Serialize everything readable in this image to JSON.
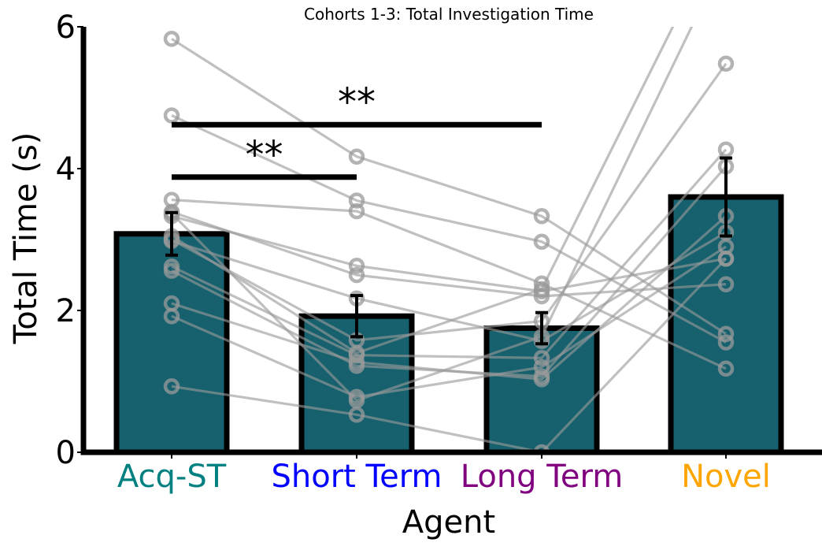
{
  "chart_data": {
    "type": "bar",
    "title": "Cohorts 1-3: Total Investigation Time",
    "xlabel": "Agent",
    "ylabel": "Total Time (s)",
    "ylim": [
      0,
      6
    ],
    "yticks": [
      0,
      2,
      4,
      6
    ],
    "categories": [
      "Acq-ST",
      "Short Term",
      "Long Term",
      "Novel"
    ],
    "category_colors": [
      "#008080",
      "#0000FF",
      "#800080",
      "#FFA500"
    ],
    "bar_color": "#17616F",
    "means": [
      3.08,
      1.92,
      1.75,
      3.6
    ],
    "sem": [
      0.3,
      0.29,
      0.22,
      0.55
    ],
    "subjects": [
      [
        5.83,
        4.17,
        3.33,
        1.67
      ],
      [
        4.75,
        3.55,
        2.97,
        1.55
      ],
      [
        3.56,
        3.4,
        2.38,
        1.18
      ],
      [
        3.33,
        2.63,
        2.27,
        2.73
      ],
      [
        3.39,
        2.5,
        2.2,
        2.37
      ],
      [
        3.0,
        1.58,
        1.85,
        5.48
      ],
      [
        2.62,
        1.37,
        1.33,
        4.27
      ],
      [
        2.56,
        1.22,
        1.07,
        4.03
      ],
      [
        2.1,
        1.27,
        1.03,
        3.33
      ],
      [
        1.92,
        0.78,
        1.2,
        2.9
      ],
      [
        0.93,
        0.53,
        0.0,
        2.73
      ],
      [
        3.37,
        0.73,
        1.63,
        7.0
      ],
      [
        3.05,
        1.4,
        2.3,
        7.5
      ],
      [
        2.98,
        2.17,
        1.57,
        3.1
      ]
    ],
    "significance": [
      {
        "from": 0,
        "to": 1,
        "label": "**",
        "y": 3.88
      },
      {
        "from": 0,
        "to": 2,
        "label": "**",
        "y": 4.62
      }
    ]
  }
}
